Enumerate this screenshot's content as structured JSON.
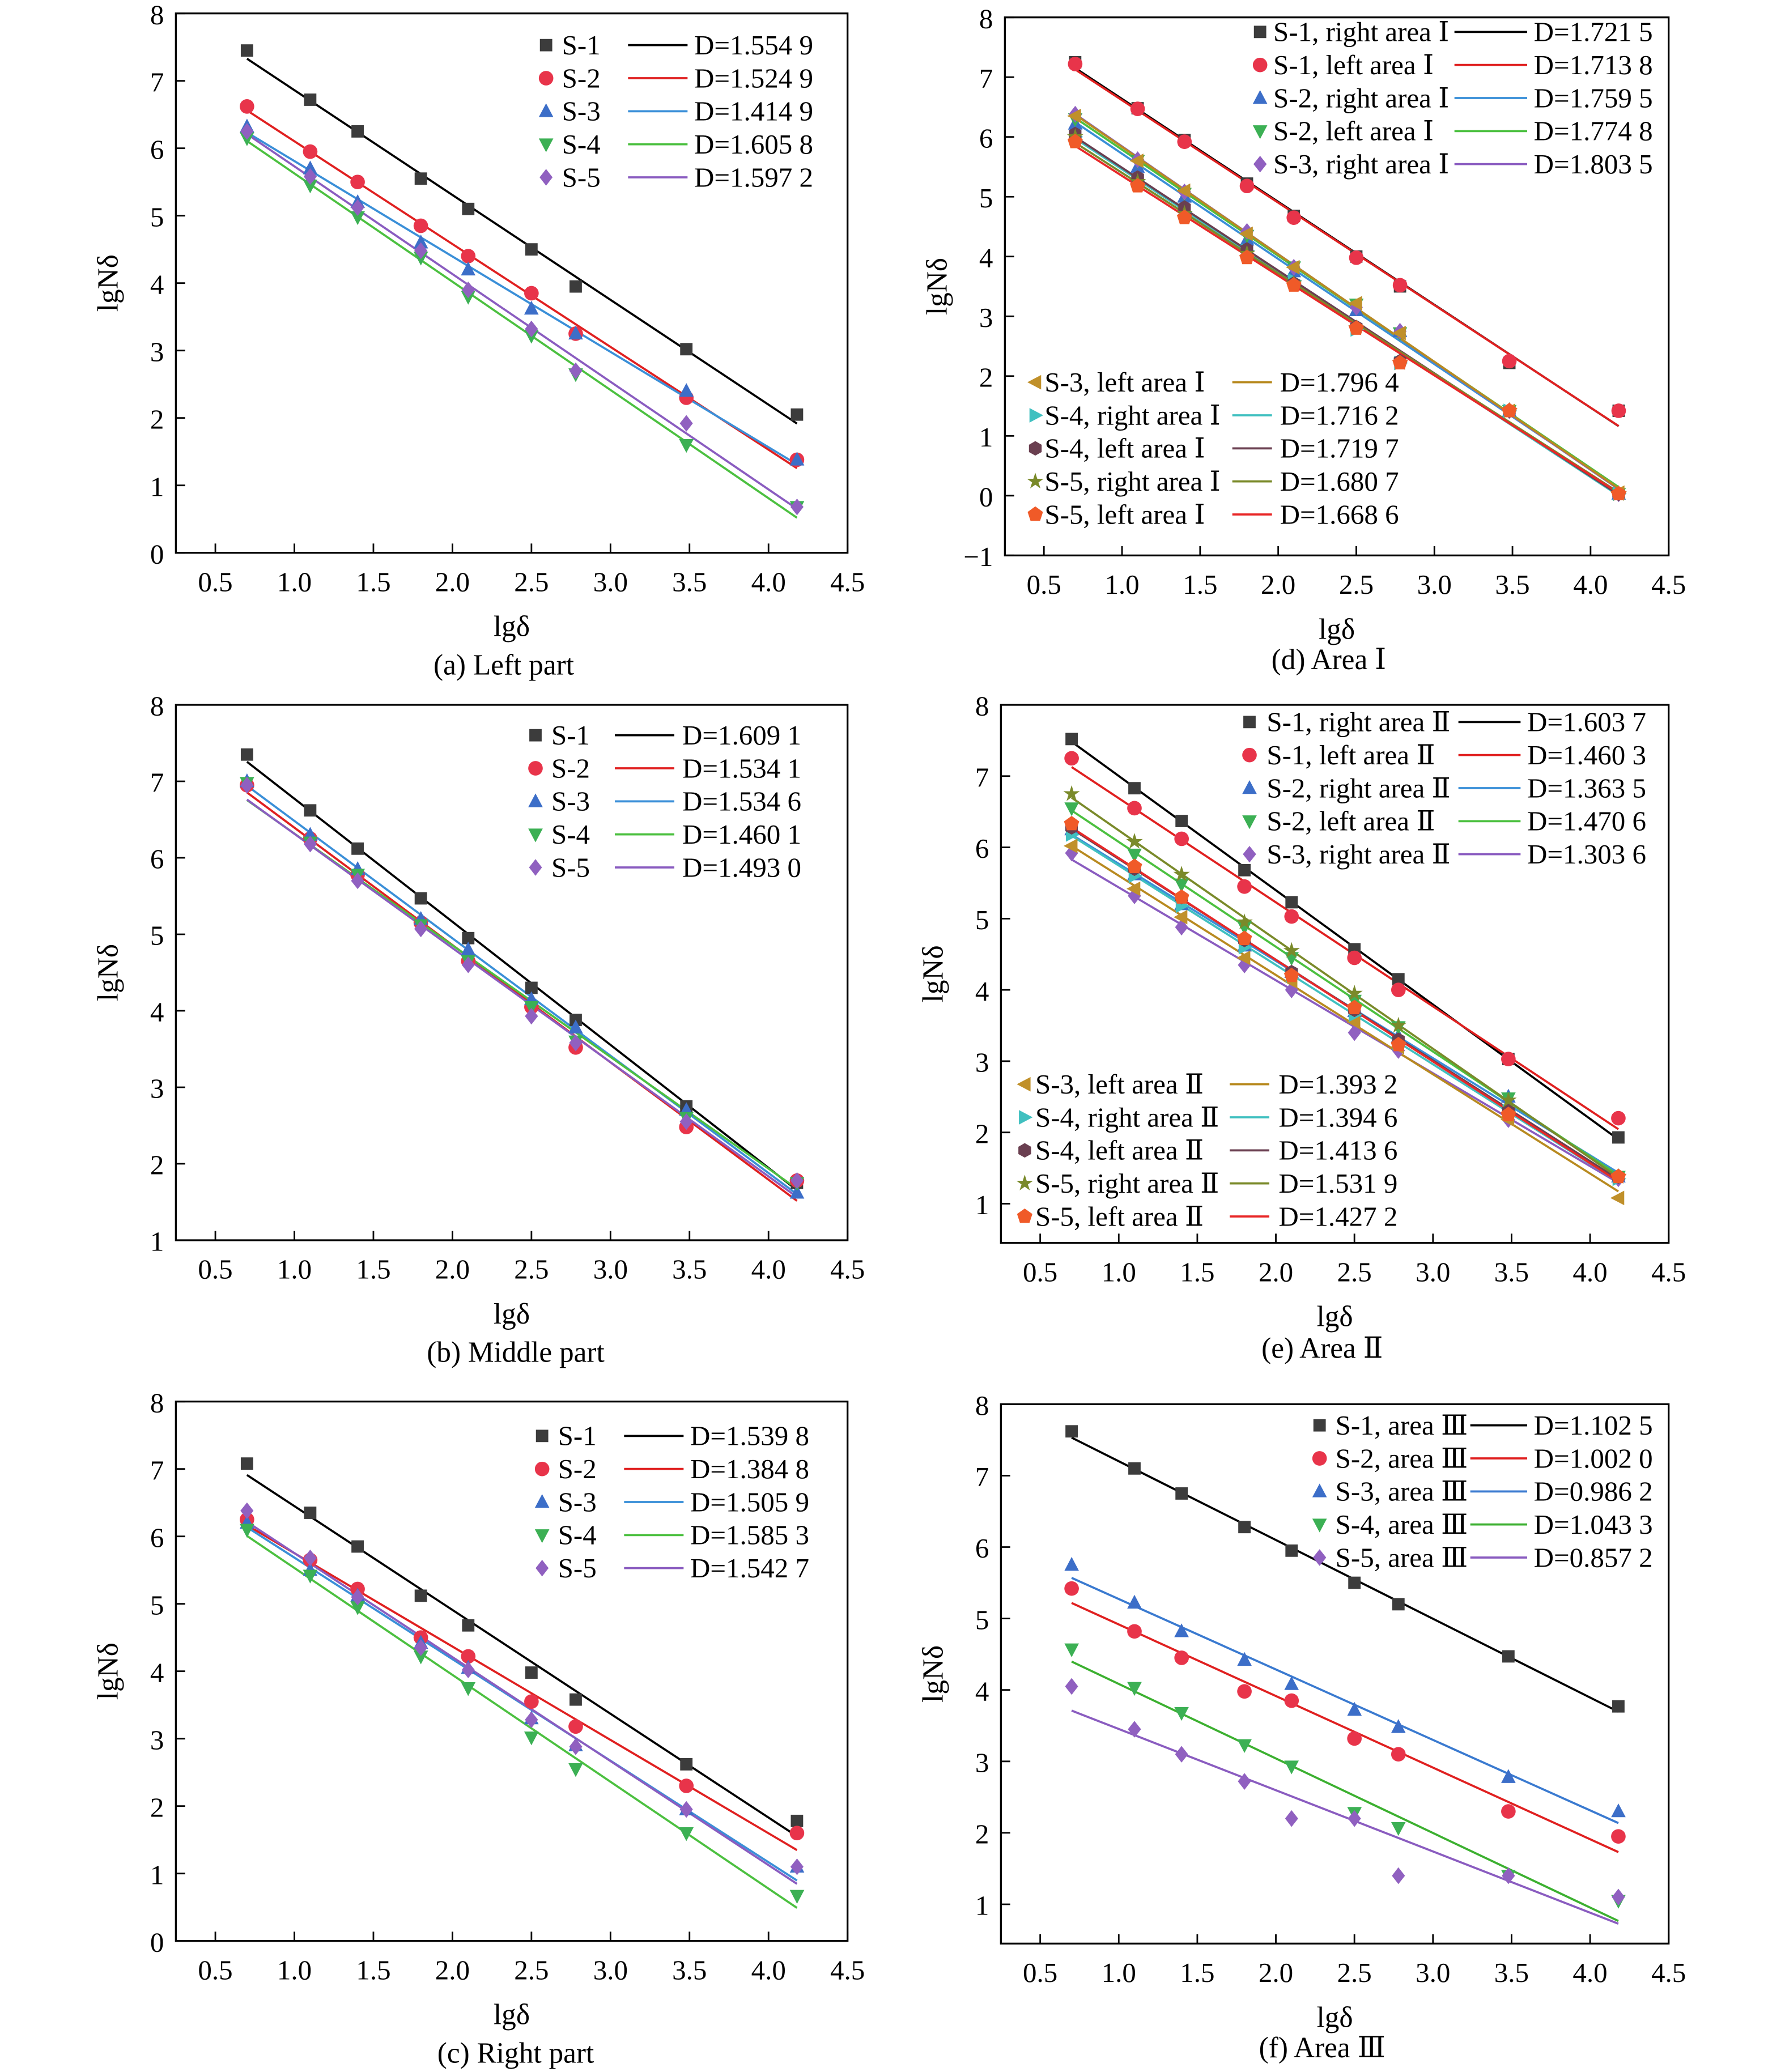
{
  "chart_data": [
    {
      "id": "a",
      "type": "line",
      "caption": "(a) Left part",
      "xlabel": "lgδ",
      "ylabel": "lgNδ",
      "xlim": [
        0.25,
        4.5
      ],
      "ylim": [
        0,
        8
      ],
      "grid": false,
      "legend": "top-right",
      "x": [
        0.7,
        1.1,
        1.4,
        1.8,
        2.1,
        2.5,
        2.78,
        3.48,
        4.18
      ],
      "series": [
        {
          "name": "S-1",
          "D": "D=1.554 9",
          "slope": 1.5549,
          "marker": "square",
          "color": "#3c3c3c",
          "line_color": "#000000",
          "y": [
            7.45,
            6.72,
            6.25,
            5.55,
            5.1,
            4.5,
            3.95,
            3.02,
            2.05
          ]
        },
        {
          "name": "S-2",
          "D": "D=1.524 9",
          "slope": 1.5249,
          "marker": "circle",
          "color": "#e8344a",
          "line_color": "#e02020",
          "y": [
            6.62,
            5.95,
            5.5,
            4.85,
            4.4,
            3.85,
            3.25,
            2.3,
            1.38
          ]
        },
        {
          "name": "S-3",
          "D": "D=1.414 9",
          "slope": 1.4149,
          "marker": "triangle-up",
          "color": "#3c6ec8",
          "line_color": "#3a8fd8",
          "y": [
            6.32,
            5.7,
            5.2,
            4.6,
            4.2,
            3.62,
            3.25,
            2.4,
            1.38
          ]
        },
        {
          "name": "S-4",
          "D": "D=1.605 8",
          "slope": 1.6058,
          "marker": "triangle-down",
          "color": "#3cb054",
          "line_color": "#4cc040",
          "y": [
            6.15,
            5.45,
            4.98,
            4.38,
            3.8,
            3.22,
            2.65,
            1.6,
            0.68
          ]
        },
        {
          "name": "S-5",
          "D": "D=1.597 2",
          "slope": 1.5972,
          "marker": "diamond",
          "color": "#9060c0",
          "line_color": "#8a5cc0",
          "y": [
            6.25,
            5.58,
            5.12,
            4.48,
            3.9,
            3.32,
            2.7,
            1.92,
            0.68
          ]
        }
      ]
    },
    {
      "id": "b",
      "type": "line",
      "caption": "(b) Middle part",
      "xlabel": "lgδ",
      "ylabel": "lgNδ",
      "xlim": [
        0.25,
        4.5
      ],
      "ylim": [
        1,
        8
      ],
      "grid": false,
      "legend": "top-right",
      "x": [
        0.7,
        1.1,
        1.4,
        1.8,
        2.1,
        2.5,
        2.78,
        3.48,
        4.18
      ],
      "series": [
        {
          "name": "S-1",
          "D": "D=1.609 1",
          "slope": 1.6091,
          "marker": "square",
          "color": "#3c3c3c",
          "line_color": "#000000",
          "y": [
            7.35,
            6.62,
            6.12,
            5.47,
            4.95,
            4.3,
            3.88,
            2.75,
            1.75
          ]
        },
        {
          "name": "S-2",
          "D": "D=1.534 1",
          "slope": 1.5341,
          "marker": "circle",
          "color": "#e8344a",
          "line_color": "#e02020",
          "y": [
            6.95,
            6.25,
            5.78,
            5.15,
            4.65,
            4.05,
            3.52,
            2.48,
            1.78
          ]
        },
        {
          "name": "S-3",
          "D": "D=1.534 6",
          "slope": 1.5346,
          "marker": "triangle-up",
          "color": "#3c6ec8",
          "line_color": "#3a8fd8",
          "y": [
            7.0,
            6.3,
            5.85,
            5.2,
            4.8,
            4.15,
            3.78,
            2.7,
            1.62
          ]
        },
        {
          "name": "S-4",
          "D": "D=1.460 1",
          "slope": 1.4601,
          "marker": "triangle-down",
          "color": "#3cb054",
          "line_color": "#4cc040",
          "y": [
            6.98,
            6.2,
            5.78,
            5.12,
            4.65,
            4.05,
            3.6,
            2.6,
            1.75
          ]
        },
        {
          "name": "S-5",
          "D": "D=1.493 0",
          "slope": 1.493,
          "marker": "diamond",
          "color": "#9060c0",
          "line_color": "#8a5cc0",
          "y": [
            6.95,
            6.18,
            5.7,
            5.07,
            4.6,
            3.93,
            3.58,
            2.55,
            1.78
          ]
        }
      ]
    },
    {
      "id": "c",
      "type": "line",
      "caption": "(c) Right part",
      "xlabel": "lgδ",
      "ylabel": "lgNδ",
      "xlim": [
        0.25,
        4.5
      ],
      "ylim": [
        0,
        8
      ],
      "grid": false,
      "legend": "top-right",
      "x": [
        0.7,
        1.1,
        1.4,
        1.8,
        2.1,
        2.5,
        2.78,
        3.48,
        4.18
      ],
      "series": [
        {
          "name": "S-1",
          "D": "D=1.539 8",
          "slope": 1.5398,
          "marker": "square",
          "color": "#3c3c3c",
          "line_color": "#000000",
          "y": [
            7.08,
            6.35,
            5.85,
            5.12,
            4.68,
            3.98,
            3.58,
            2.62,
            1.78
          ]
        },
        {
          "name": "S-2",
          "D": "D=1.384 8",
          "slope": 1.3848,
          "marker": "circle",
          "color": "#e8344a",
          "line_color": "#e02020",
          "y": [
            6.25,
            5.65,
            5.22,
            4.5,
            4.22,
            3.55,
            3.18,
            2.3,
            1.6
          ]
        },
        {
          "name": "S-3",
          "D": "D=1.505 9",
          "slope": 1.5059,
          "marker": "triangle-up",
          "color": "#3c6ec8",
          "line_color": "#3a8fd8",
          "y": [
            6.2,
            5.5,
            5.12,
            4.42,
            4.05,
            3.3,
            2.9,
            1.95,
            1.1
          ]
        },
        {
          "name": "S-4",
          "D": "D=1.585 3",
          "slope": 1.5853,
          "marker": "triangle-down",
          "color": "#3cb054",
          "line_color": "#4cc040",
          "y": [
            6.1,
            5.42,
            4.95,
            4.22,
            3.75,
            3.02,
            2.55,
            1.6,
            0.67
          ]
        },
        {
          "name": "S-5",
          "D": "D=1.542 7",
          "slope": 1.5427,
          "marker": "diamond",
          "color": "#9060c0",
          "line_color": "#8a5cc0",
          "y": [
            6.38,
            5.68,
            5.1,
            4.35,
            4.02,
            3.28,
            2.88,
            1.95,
            1.1
          ]
        }
      ]
    },
    {
      "id": "d",
      "type": "line",
      "caption": "(d) Area Ⅰ",
      "xlabel": "lgδ",
      "ylabel": "lgNδ",
      "xlim": [
        0.25,
        4.5
      ],
      "ylim": [
        -1,
        8
      ],
      "grid": false,
      "legend": "top-right and bottom-left",
      "x": [
        0.7,
        1.1,
        1.4,
        1.8,
        2.1,
        2.5,
        2.78,
        3.48,
        4.18
      ],
      "series": [
        {
          "name": "S-1, right area Ⅰ",
          "D": "D=1.721 5",
          "slope": 1.7215,
          "marker": "square",
          "color": "#3c3c3c",
          "line_color": "#000000",
          "y": [
            7.25,
            6.48,
            5.95,
            5.22,
            4.68,
            4.0,
            3.5,
            2.22,
            1.42
          ]
        },
        {
          "name": "S-1, left area Ⅰ",
          "D": "D=1.713 8",
          "slope": 1.7138,
          "marker": "circle",
          "color": "#e8344a",
          "line_color": "#e02020",
          "y": [
            7.22,
            6.47,
            5.92,
            5.18,
            4.65,
            3.98,
            3.52,
            2.25,
            1.42
          ]
        },
        {
          "name": "S-2, right area Ⅰ",
          "D": "D=1.759 5",
          "slope": 1.7595,
          "marker": "triangle-up",
          "color": "#3c6ec8",
          "line_color": "#3a8fd8",
          "y": [
            6.22,
            5.5,
            5.0,
            4.28,
            3.75,
            3.1,
            2.75,
            1.42,
            0.03
          ]
        },
        {
          "name": "S-2, left area Ⅰ",
          "D": "D=1.774 8",
          "slope": 1.7748,
          "marker": "triangle-down",
          "color": "#3cb054",
          "line_color": "#4cc040",
          "y": [
            6.3,
            5.6,
            5.05,
            4.35,
            3.82,
            3.2,
            2.72,
            1.42,
            0.03
          ]
        },
        {
          "name": "S-3, right area Ⅰ",
          "D": "D=1.803 5",
          "slope": 1.8035,
          "marker": "diamond",
          "color": "#9060c0",
          "line_color": "#8a5cc0",
          "y": [
            6.38,
            5.62,
            5.08,
            4.42,
            3.82,
            3.15,
            2.75,
            1.42,
            0.03
          ]
        },
        {
          "name": "S-3, left area Ⅰ",
          "D": "D=1.796 4",
          "slope": 1.7964,
          "marker": "triangle-left",
          "color": "#c0902a",
          "line_color": "#b88a20",
          "y": [
            6.35,
            5.6,
            5.1,
            4.38,
            3.82,
            3.22,
            2.72,
            1.42,
            0.05
          ]
        },
        {
          "name": "S-4, right area Ⅰ",
          "D": "D=1.716 2",
          "slope": 1.7162,
          "marker": "triangle-right",
          "color": "#40c0c0",
          "line_color": "#40c0c0",
          "y": [
            6.0,
            5.28,
            4.75,
            4.1,
            3.6,
            2.78,
            2.22,
            1.42,
            0.03
          ]
        },
        {
          "name": "S-4, left area Ⅰ",
          "D": "D=1.719 7",
          "slope": 1.7197,
          "marker": "hexagon",
          "color": "#6a3f50",
          "line_color": "#6a3f50",
          "y": [
            6.05,
            5.32,
            4.82,
            4.12,
            3.55,
            2.82,
            2.25,
            1.42,
            0.03
          ]
        },
        {
          "name": "S-5, right area Ⅰ",
          "D": "D=1.680 7",
          "slope": 1.6807,
          "marker": "star",
          "color": "#7a8a2a",
          "line_color": "#7a8a2a",
          "y": [
            6.0,
            5.25,
            4.72,
            4.05,
            3.55,
            2.8,
            2.22,
            1.42,
            0.03
          ]
        },
        {
          "name": "S-5, left area Ⅰ",
          "D": "D=1.668 6",
          "slope": 1.6686,
          "marker": "pentagon",
          "color": "#f05a28",
          "line_color": "#e82828",
          "y": [
            5.92,
            5.18,
            4.65,
            3.98,
            3.52,
            2.8,
            2.22,
            1.42,
            0.03
          ]
        }
      ]
    },
    {
      "id": "e",
      "type": "line",
      "caption": "(e) Area Ⅱ",
      "xlabel": "lgδ",
      "ylabel": "lgNδ",
      "xlim": [
        0.25,
        4.5
      ],
      "ylim": [
        0.45,
        8
      ],
      "grid": false,
      "legend": "top-right and bottom-left",
      "x": [
        0.7,
        1.1,
        1.4,
        1.8,
        2.1,
        2.5,
        2.78,
        3.48,
        4.18
      ],
      "series": [
        {
          "name": "S-1, right area Ⅱ",
          "D": "D=1.603 7",
          "slope": 1.6037,
          "marker": "square",
          "color": "#3c3c3c",
          "line_color": "#000000",
          "y": [
            7.52,
            6.83,
            6.37,
            5.68,
            5.23,
            4.57,
            4.15,
            3.03,
            1.93
          ]
        },
        {
          "name": "S-1, left area Ⅱ",
          "D": "D=1.460 3",
          "slope": 1.4603,
          "marker": "circle",
          "color": "#e8344a",
          "line_color": "#e02020",
          "y": [
            7.25,
            6.55,
            6.12,
            5.45,
            5.03,
            4.45,
            4.0,
            3.03,
            2.2
          ]
        },
        {
          "name": "S-2, right area Ⅱ",
          "D": "D=1.363 5",
          "slope": 1.3635,
          "marker": "triangle-up",
          "color": "#3c6ec8",
          "line_color": "#3a8fd8",
          "y": [
            6.25,
            5.62,
            5.2,
            4.62,
            4.25,
            3.7,
            3.35,
            2.5,
            1.38
          ]
        },
        {
          "name": "S-2, left area Ⅱ",
          "D": "D=1.470 6",
          "slope": 1.4706,
          "marker": "triangle-down",
          "color": "#3cb054",
          "line_color": "#4cc040",
          "y": [
            6.55,
            5.9,
            5.48,
            4.88,
            4.45,
            3.85,
            3.48,
            2.48,
            1.38
          ]
        },
        {
          "name": "S-3, right area Ⅱ",
          "D": "D=1.303 6",
          "slope": 1.3036,
          "marker": "diamond",
          "color": "#9060c0",
          "line_color": "#8a5cc0",
          "y": [
            5.92,
            5.32,
            4.88,
            4.35,
            4.0,
            3.4,
            3.15,
            2.18,
            1.35
          ]
        },
        {
          "name": "S-3, left area Ⅱ",
          "D": "D=1.393 2",
          "slope": 1.3932,
          "marker": "triangle-left",
          "color": "#c0902a",
          "line_color": "#b88a20",
          "y": [
            6.02,
            5.42,
            5.02,
            4.45,
            4.12,
            3.55,
            3.2,
            2.18,
            1.08
          ]
        },
        {
          "name": "S-4, right area Ⅱ",
          "D": "D=1.394 6",
          "slope": 1.3946,
          "marker": "triangle-right",
          "color": "#40c0c0",
          "line_color": "#40c0c0",
          "y": [
            6.18,
            5.6,
            5.18,
            4.6,
            4.2,
            3.65,
            3.25,
            2.3,
            1.35
          ]
        },
        {
          "name": "S-4, left area Ⅱ",
          "D": "D=1.413 6",
          "slope": 1.4136,
          "marker": "hexagon",
          "color": "#6a3f50",
          "line_color": "#6a3f50",
          "y": [
            6.28,
            5.7,
            5.3,
            4.7,
            4.25,
            3.72,
            3.3,
            2.3,
            1.38
          ]
        },
        {
          "name": "S-5, right area Ⅱ",
          "D": "D=1.531 9",
          "slope": 1.5319,
          "marker": "star",
          "color": "#7a8a2a",
          "line_color": "#7a8a2a",
          "y": [
            6.75,
            6.08,
            5.62,
            4.95,
            4.55,
            3.95,
            3.5,
            2.45,
            1.38
          ]
        },
        {
          "name": "S-5, left area Ⅱ",
          "D": "D=1.427 2",
          "slope": 1.4272,
          "marker": "pentagon",
          "color": "#f05a28",
          "line_color": "#e82828",
          "y": [
            6.33,
            5.73,
            5.3,
            4.72,
            4.2,
            3.75,
            3.23,
            2.25,
            1.38
          ]
        }
      ]
    },
    {
      "id": "f",
      "type": "line",
      "caption": "(f) Area Ⅲ",
      "xlabel": "lgδ",
      "ylabel": "lgNδ",
      "xlim": [
        0.25,
        4.5
      ],
      "ylim": [
        0.45,
        8
      ],
      "grid": false,
      "legend": "top-right",
      "x": [
        0.7,
        1.1,
        1.4,
        1.8,
        2.1,
        2.5,
        2.78,
        3.48,
        4.18
      ],
      "series": [
        {
          "name": "S-1, area Ⅲ",
          "D": "D=1.102 5",
          "slope": 1.1025,
          "marker": "square",
          "color": "#3c3c3c",
          "line_color": "#000000",
          "y": [
            7.62,
            7.1,
            6.75,
            6.28,
            5.95,
            5.5,
            5.2,
            4.47,
            3.77
          ]
        },
        {
          "name": "S-2, area Ⅲ",
          "D": "D=1.002 0",
          "slope": 1.002,
          "marker": "circle",
          "color": "#e8344a",
          "line_color": "#e02020",
          "y": [
            5.42,
            4.82,
            4.45,
            3.98,
            3.85,
            3.32,
            3.1,
            2.3,
            1.95
          ]
        },
        {
          "name": "S-3, area Ⅲ",
          "D": "D=0.986 2",
          "slope": 0.9862,
          "marker": "triangle-up",
          "color": "#3c6ec8",
          "line_color": "#3a7ad0",
          "y": [
            5.75,
            5.22,
            4.82,
            4.42,
            4.08,
            3.72,
            3.48,
            2.78,
            2.3
          ]
        },
        {
          "name": "S-4, area Ⅲ",
          "D": "D=1.043 3",
          "slope": 1.0433,
          "marker": "triangle-down",
          "color": "#3cb054",
          "line_color": "#3cb030",
          "y": [
            4.57,
            4.03,
            3.68,
            3.23,
            2.93,
            2.28,
            2.07,
            1.4,
            1.05
          ]
        },
        {
          "name": "S-5, area Ⅲ",
          "D": "D=0.857 2",
          "slope": 0.8572,
          "marker": "diamond",
          "color": "#9060c0",
          "line_color": "#8a5cc0",
          "y": [
            4.05,
            3.45,
            3.1,
            2.72,
            2.2,
            2.2,
            1.4,
            1.4,
            1.1
          ]
        }
      ]
    }
  ]
}
